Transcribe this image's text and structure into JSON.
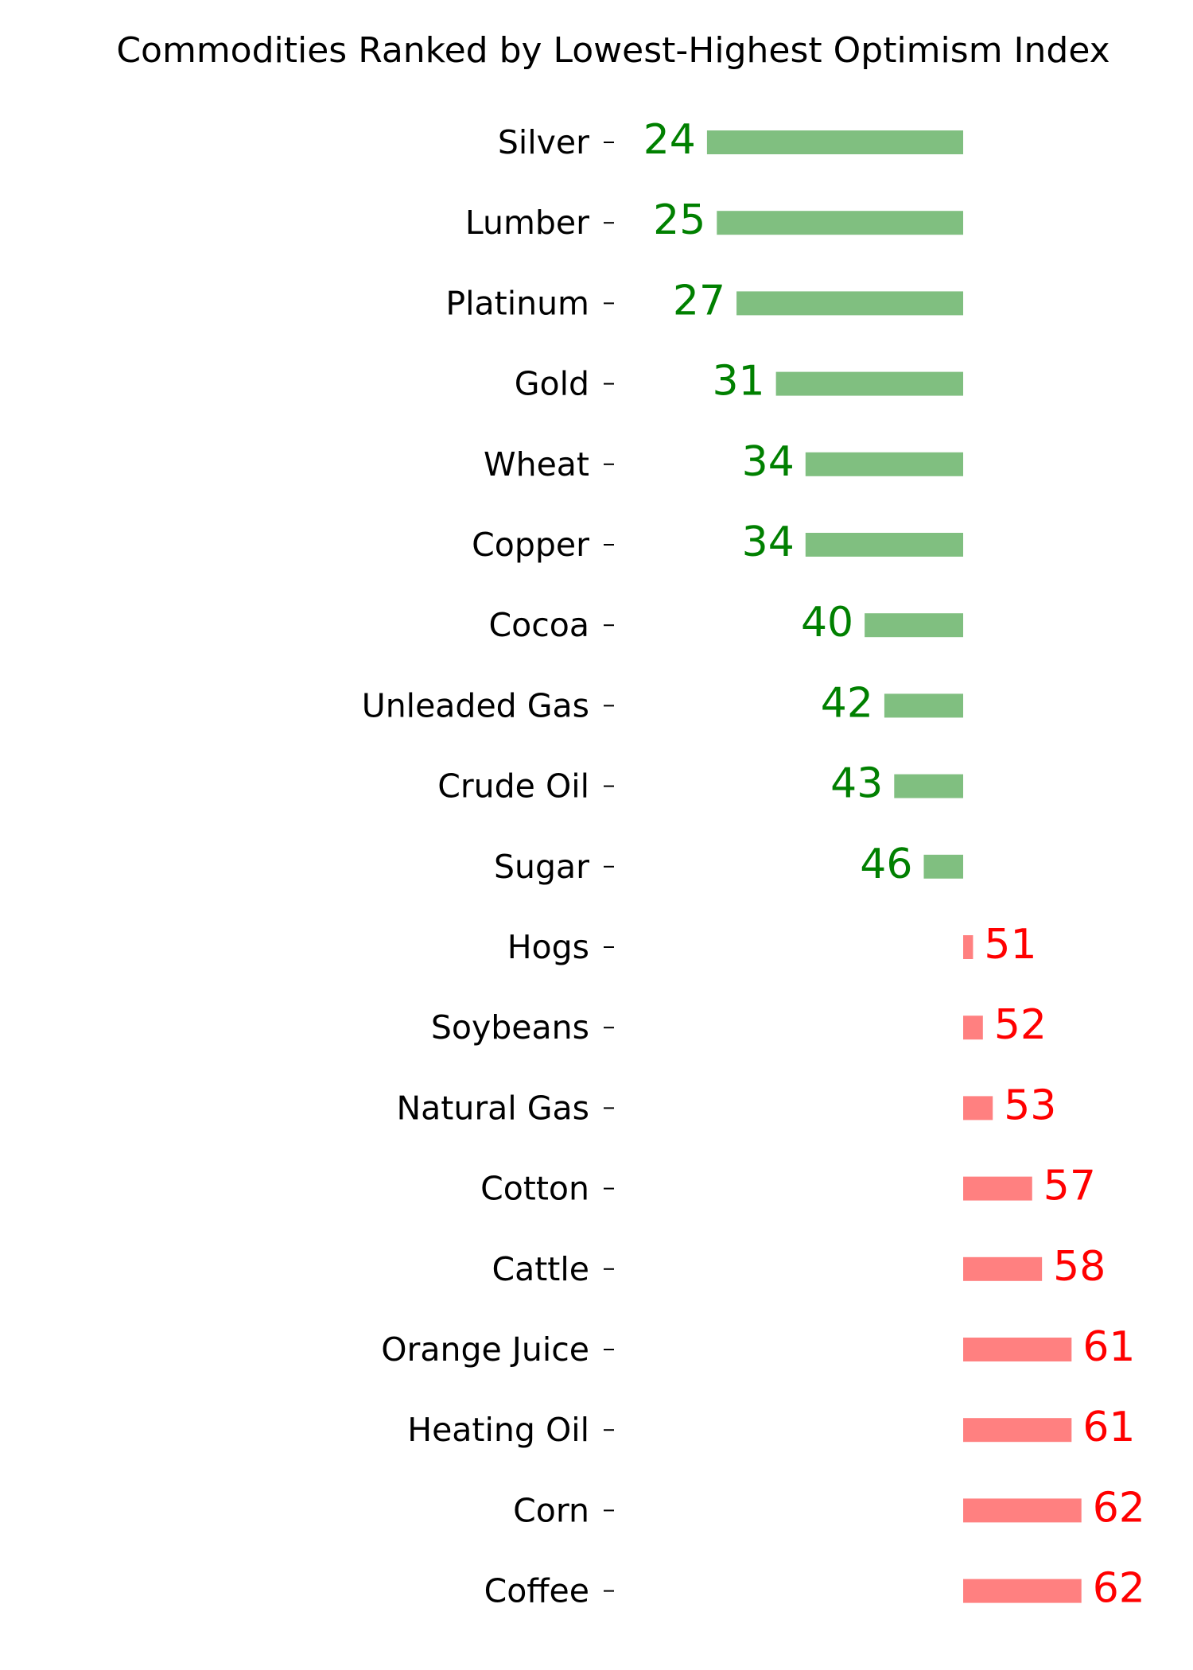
{
  "chart_data": {
    "type": "diverging_bar",
    "title": "Commodities Ranked by Lowest-Highest Optimism Index",
    "categories": [
      "Silver",
      "Lumber",
      "Platinum",
      "Gold",
      "Wheat",
      "Copper",
      "Cocoa",
      "Unleaded Gas",
      "Crude Oil",
      "Sugar",
      "Hogs",
      "Soybeans",
      "Natural Gas",
      "Cotton",
      "Cattle",
      "Orange Juice",
      "Heating Oil",
      "Corn",
      "Coffee"
    ],
    "values": [
      24,
      25,
      27,
      31,
      34,
      34,
      40,
      42,
      43,
      46,
      51,
      52,
      53,
      57,
      58,
      61,
      61,
      62,
      62
    ],
    "baseline": 50,
    "xlim": [
      14,
      73
    ],
    "below_color": "#80bf80",
    "above_color": "#ff8080",
    "below_label_color": "green",
    "above_label_color": "red"
  }
}
